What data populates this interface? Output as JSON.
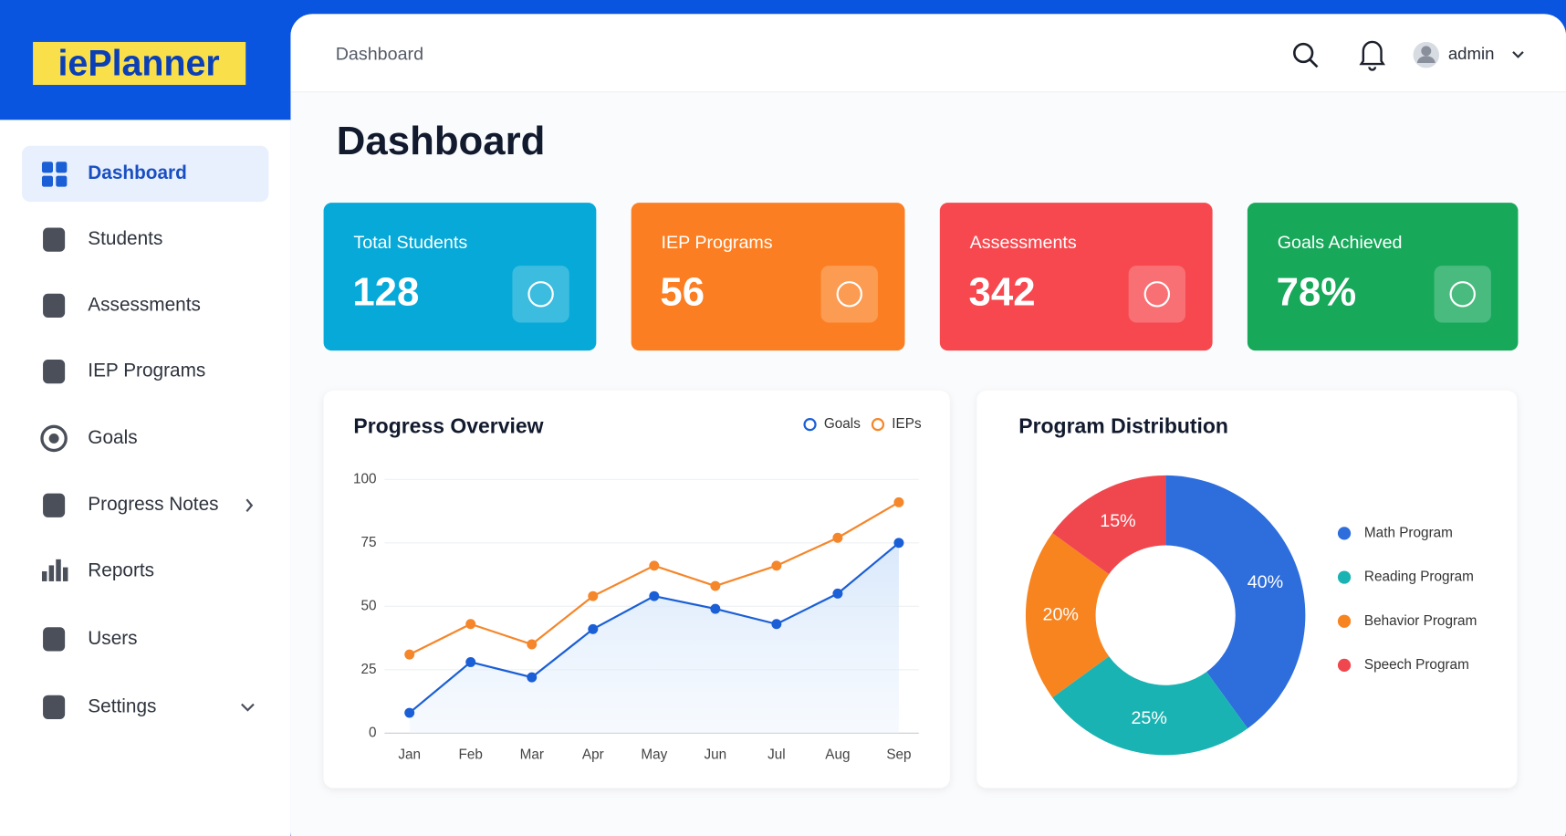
{
  "brand": "iePlanner",
  "nav": {
    "items": [
      "Dashboard",
      "Students",
      "Assessments",
      "IEP Programs",
      "Goals",
      "Progress Notes",
      "Reports",
      "Users",
      "Settings"
    ]
  },
  "header": {
    "breadcrumb": "Dashboard",
    "user": "admin"
  },
  "page_title": "Dashboard",
  "cards": [
    {
      "label": "Total Students",
      "value": "128",
      "color": "#06a9d7"
    },
    {
      "label": "IEP Programs",
      "value": "56",
      "color": "#fb7f22"
    },
    {
      "label": "Assessments",
      "value": "342",
      "color": "#f6484e"
    },
    {
      "label": "Goals Achieved",
      "value": "78%",
      "color": "#17a85a"
    }
  ],
  "chart_data": [
    {
      "type": "line",
      "title": "Progress Overview",
      "categories": [
        "Jan",
        "Feb",
        "Mar",
        "Apr",
        "May",
        "Jun",
        "Jul",
        "Aug",
        "Sep"
      ],
      "series": [
        {
          "name": "Goals",
          "color": "#1a5fd6",
          "values": [
            8,
            28,
            22,
            41,
            54,
            49,
            43,
            55,
            75
          ]
        },
        {
          "name": "IEPs",
          "color": "#f5862a",
          "values": [
            31,
            43,
            35,
            54,
            66,
            58,
            66,
            77,
            91
          ]
        }
      ],
      "ylim": [
        0,
        100
      ],
      "yticks": [
        0,
        25,
        50,
        75,
        100
      ],
      "grid": true,
      "legend": "top-right"
    },
    {
      "type": "pie",
      "title": "Program Distribution",
      "categories": [
        "Math Program",
        "Reading Program",
        "Behavior Program",
        "Speech Program"
      ],
      "values": [
        40,
        25,
        20,
        15
      ],
      "value_labels": [
        "40%",
        "25%",
        "20%",
        "15%"
      ],
      "colors": [
        "#2d6ddc",
        "#1ab3b3",
        "#f7841f",
        "#f0474f"
      ],
      "donut": true,
      "legend": "right"
    }
  ]
}
